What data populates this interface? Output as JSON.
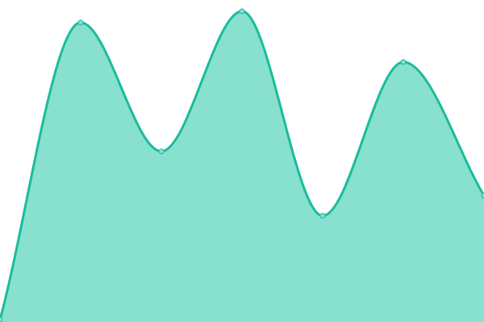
{
  "chart_data": {
    "type": "area",
    "title": "",
    "xlabel": "",
    "ylabel": "",
    "x": [
      0,
      1,
      2,
      3,
      4,
      5,
      6
    ],
    "values": [
      3,
      372,
      212,
      386,
      132,
      323,
      157
    ],
    "ylim": [
      0,
      400
    ],
    "grid": false,
    "smooth": true,
    "colors": {
      "line": "#1abc9c",
      "fill": "#88e0cf",
      "point_fill": "#88e0cf"
    }
  }
}
